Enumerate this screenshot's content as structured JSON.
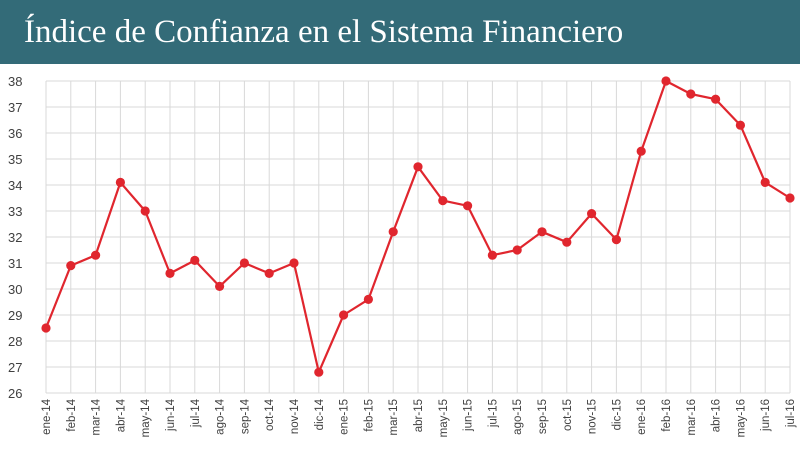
{
  "header": {
    "title": "Índice de Confianza en el Sistema Financiero"
  },
  "colors": {
    "header_bg": "#336b78",
    "line": "#e0262e",
    "grid": "#d9d9d9",
    "axis_text": "#404040"
  },
  "chart_data": {
    "type": "line",
    "title": "Índice de Confianza en el Sistema Financiero",
    "xlabel": "",
    "ylabel": "",
    "ylim": [
      26,
      38
    ],
    "grid": true,
    "legend": "none",
    "yticks": [
      26,
      27,
      28,
      29,
      30,
      31,
      32,
      33,
      34,
      35,
      36,
      37,
      38
    ],
    "categories": [
      "ene-14",
      "feb-14",
      "mar-14",
      "abr-14",
      "may-14",
      "jun-14",
      "jul-14",
      "ago-14",
      "sep-14",
      "oct-14",
      "nov-14",
      "dic-14",
      "ene-15",
      "feb-15",
      "mar-15",
      "abr-15",
      "may-15",
      "jun-15",
      "jul-15",
      "ago-15",
      "sep-15",
      "oct-15",
      "nov-15",
      "dic-15",
      "ene-16",
      "feb-16",
      "mar-16",
      "abr-16",
      "may-16",
      "jun-16",
      "jul-16"
    ],
    "series": [
      {
        "values": [
          28.5,
          30.9,
          31.3,
          34.1,
          33.0,
          30.6,
          31.1,
          30.1,
          31.0,
          30.6,
          31.0,
          26.8,
          29.0,
          29.6,
          32.2,
          34.7,
          33.4,
          33.2,
          31.3,
          31.5,
          32.2,
          31.8,
          32.9,
          31.9,
          35.3,
          38.0,
          37.5,
          37.3,
          36.3,
          34.1,
          33.5
        ]
      }
    ]
  }
}
